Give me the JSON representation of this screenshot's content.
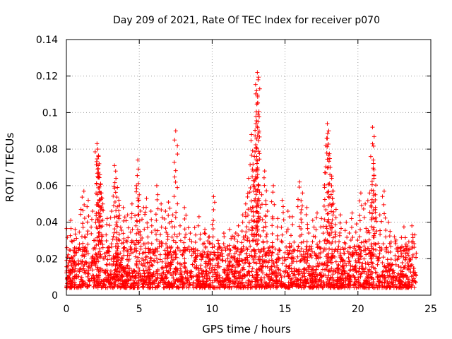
{
  "colors": {
    "series": "#ff0000",
    "grid": "#a0a0a0",
    "axis": "#000000",
    "background": "#ffffff"
  },
  "chart_data": {
    "type": "scatter",
    "title": "Day 209 of 2021, Rate Of TEC Index for receiver p070",
    "xlabel": "GPS time / hours",
    "ylabel": "ROTI / TECUs",
    "xlim": [
      0,
      25
    ],
    "ylim": [
      0,
      0.14
    ],
    "x_ticks": [
      0,
      5,
      10,
      15,
      20,
      25
    ],
    "y_ticks": [
      0,
      0.02,
      0.04,
      0.06,
      0.08,
      0.1,
      0.12,
      0.14
    ],
    "x_tick_labels": [
      "0",
      "5",
      "10",
      "15",
      "20",
      "25"
    ],
    "y_tick_labels": [
      "0",
      "0.02",
      "0.04",
      "0.06",
      "0.08",
      "0.1",
      "0.12",
      "0.14"
    ],
    "grid": true,
    "marker": "plus",
    "series": [
      {
        "name": "ROTI",
        "points": [
          [
            0.3,
            0.041
          ],
          [
            0.6,
            0.036
          ],
          [
            1.0,
            0.047
          ],
          [
            1.2,
            0.057
          ],
          [
            1.5,
            0.052
          ],
          [
            1.8,
            0.046
          ],
          [
            2.1,
            0.083
          ],
          [
            2.15,
            0.08
          ],
          [
            2.2,
            0.076
          ],
          [
            2.25,
            0.072
          ],
          [
            2.3,
            0.066
          ],
          [
            2.35,
            0.061
          ],
          [
            2.4,
            0.056
          ],
          [
            2.5,
            0.05
          ],
          [
            2.8,
            0.042
          ],
          [
            3.1,
            0.046
          ],
          [
            3.3,
            0.071
          ],
          [
            3.4,
            0.064
          ],
          [
            3.5,
            0.059
          ],
          [
            3.6,
            0.052
          ],
          [
            3.9,
            0.048
          ],
          [
            4.2,
            0.044
          ],
          [
            4.5,
            0.05
          ],
          [
            4.8,
            0.06
          ],
          [
            4.9,
            0.074
          ],
          [
            5.0,
            0.055
          ],
          [
            5.3,
            0.048
          ],
          [
            5.5,
            0.053
          ],
          [
            5.8,
            0.046
          ],
          [
            6.2,
            0.06
          ],
          [
            6.5,
            0.05
          ],
          [
            6.8,
            0.046
          ],
          [
            7.0,
            0.051
          ],
          [
            7.3,
            0.044
          ],
          [
            7.5,
            0.09
          ],
          [
            7.8,
            0.038
          ],
          [
            8.1,
            0.048
          ],
          [
            8.5,
            0.034
          ],
          [
            8.8,
            0.037
          ],
          [
            9.1,
            0.043
          ],
          [
            9.5,
            0.036
          ],
          [
            9.8,
            0.032
          ],
          [
            10.1,
            0.054
          ],
          [
            10.4,
            0.03
          ],
          [
            10.8,
            0.034
          ],
          [
            11.2,
            0.036
          ],
          [
            11.5,
            0.032
          ],
          [
            11.8,
            0.038
          ],
          [
            12.1,
            0.044
          ],
          [
            12.3,
            0.05
          ],
          [
            12.5,
            0.064
          ],
          [
            12.7,
            0.088
          ],
          [
            12.8,
            0.068
          ],
          [
            12.9,
            0.076
          ],
          [
            13.0,
            0.094
          ],
          [
            13.05,
            0.112
          ],
          [
            13.1,
            0.122
          ],
          [
            13.15,
            0.118
          ],
          [
            13.2,
            0.06
          ],
          [
            13.4,
            0.055
          ],
          [
            13.6,
            0.068
          ],
          [
            13.8,
            0.046
          ],
          [
            14.2,
            0.06
          ],
          [
            14.5,
            0.042
          ],
          [
            14.8,
            0.052
          ],
          [
            15.2,
            0.046
          ],
          [
            15.5,
            0.043
          ],
          [
            16.0,
            0.062
          ],
          [
            16.2,
            0.056
          ],
          [
            16.5,
            0.048
          ],
          [
            16.9,
            0.041
          ],
          [
            17.2,
            0.045
          ],
          [
            17.5,
            0.042
          ],
          [
            17.8,
            0.082
          ],
          [
            17.9,
            0.094
          ],
          [
            18.0,
            0.09
          ],
          [
            18.1,
            0.07
          ],
          [
            18.2,
            0.064
          ],
          [
            18.3,
            0.057
          ],
          [
            18.5,
            0.047
          ],
          [
            18.8,
            0.044
          ],
          [
            19.2,
            0.04
          ],
          [
            19.6,
            0.045
          ],
          [
            19.9,
            0.039
          ],
          [
            20.2,
            0.056
          ],
          [
            20.5,
            0.05
          ],
          [
            20.8,
            0.056
          ],
          [
            21.0,
            0.092
          ],
          [
            21.05,
            0.074
          ],
          [
            21.1,
            0.064
          ],
          [
            21.2,
            0.055
          ],
          [
            21.5,
            0.044
          ],
          [
            21.8,
            0.057
          ],
          [
            22.1,
            0.04
          ],
          [
            22.5,
            0.032
          ],
          [
            22.9,
            0.026
          ],
          [
            23.3,
            0.028
          ],
          [
            23.7,
            0.038
          ],
          [
            23.9,
            0.033
          ]
        ]
      }
    ],
    "baseline_band": {
      "x_range": [
        0,
        24
      ],
      "low": 0.004,
      "high": 0.027
    }
  }
}
